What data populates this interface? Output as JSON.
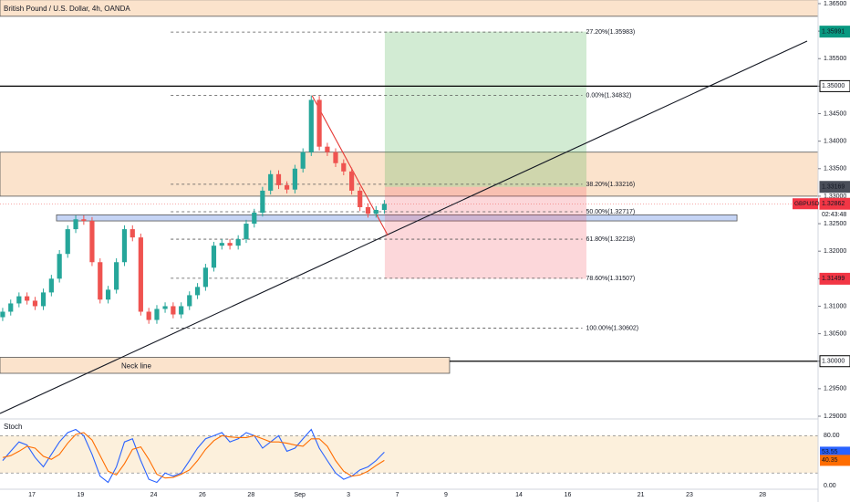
{
  "chart_data": [
    {
      "type": "candlestick",
      "title": "British Pound / U.S. Dollar, 4h, OANDA",
      "symbol": "GBPUSD",
      "countdown": "02:43:48",
      "last_price": 1.32862,
      "up_color": "#26a69a",
      "down_color": "#ef5350",
      "x": [
        -1.2,
        -0.87,
        -0.53,
        -0.2,
        0.13,
        0.47,
        0.8,
        1.13,
        1.47,
        1.8,
        2.13,
        2.47,
        2.8,
        3.13,
        3.47,
        3.8,
        4.13,
        4.47,
        4.8,
        5.13,
        5.47,
        5.8,
        6.13,
        6.47,
        6.8,
        7.13,
        7.47,
        7.8,
        8.13,
        8.47,
        8.8,
        9.13,
        9.47,
        9.8,
        10.13,
        10.47,
        10.8,
        11.13,
        11.47,
        11.8,
        12.13,
        12.47,
        12.8,
        13.13,
        13.47,
        13.8,
        14.13,
        14.47
      ],
      "open": [
        1.308,
        1.309,
        1.3105,
        1.3118,
        1.311,
        1.31,
        1.3125,
        1.315,
        1.3195,
        1.324,
        1.3258,
        1.3255,
        1.318,
        1.3112,
        1.313,
        1.318,
        1.324,
        1.3225,
        1.309,
        1.3075,
        1.3095,
        1.31,
        1.3085,
        1.31,
        1.312,
        1.3135,
        1.317,
        1.321,
        1.3215,
        1.321,
        1.3222,
        1.325,
        1.327,
        1.331,
        1.334,
        1.332,
        1.3312,
        1.335,
        1.338,
        1.3475,
        1.339,
        1.338,
        1.336,
        1.3345,
        1.331,
        1.328,
        1.3268,
        1.3275
      ],
      "high": [
        1.3097,
        1.3112,
        1.3125,
        1.3125,
        1.3117,
        1.3132,
        1.3157,
        1.3202,
        1.3247,
        1.3265,
        1.3265,
        1.3262,
        1.3187,
        1.3137,
        1.3187,
        1.3247,
        1.3247,
        1.3232,
        1.3097,
        1.3102,
        1.3107,
        1.3107,
        1.3107,
        1.3127,
        1.3142,
        1.3177,
        1.3217,
        1.3222,
        1.3222,
        1.3229,
        1.3257,
        1.3277,
        1.3317,
        1.3347,
        1.3347,
        1.3327,
        1.3357,
        1.3387,
        1.3483,
        1.3482,
        1.3397,
        1.3387,
        1.3367,
        1.3352,
        1.3317,
        1.3287,
        1.3282,
        1.3293
      ],
      "low": [
        1.3073,
        1.3083,
        1.3098,
        1.3103,
        1.3093,
        1.3093,
        1.3118,
        1.3143,
        1.3188,
        1.3233,
        1.3248,
        1.3173,
        1.3105,
        1.3105,
        1.3123,
        1.3173,
        1.3218,
        1.3083,
        1.3068,
        1.3068,
        1.3088,
        1.3078,
        1.3078,
        1.3093,
        1.3113,
        1.3128,
        1.3163,
        1.3203,
        1.3203,
        1.3203,
        1.3215,
        1.3243,
        1.3263,
        1.3303,
        1.3313,
        1.3305,
        1.3305,
        1.3343,
        1.3373,
        1.3383,
        1.3373,
        1.3353,
        1.3338,
        1.3303,
        1.3273,
        1.3261,
        1.3261,
        1.3268
      ],
      "close": [
        1.309,
        1.3105,
        1.3118,
        1.311,
        1.31,
        1.3125,
        1.315,
        1.3195,
        1.324,
        1.3258,
        1.3255,
        1.318,
        1.3112,
        1.313,
        1.318,
        1.324,
        1.3225,
        1.309,
        1.3075,
        1.3095,
        1.31,
        1.3085,
        1.31,
        1.312,
        1.3135,
        1.317,
        1.321,
        1.3215,
        1.321,
        1.3222,
        1.325,
        1.327,
        1.331,
        1.334,
        1.332,
        1.3312,
        1.335,
        1.338,
        1.3475,
        1.339,
        1.338,
        1.336,
        1.3345,
        1.331,
        1.328,
        1.3268,
        1.3275,
        1.3286
      ],
      "xlim": [
        -1.31,
        32.28
      ],
      "xticks": [
        {
          "value": 0,
          "label": "17"
        },
        {
          "value": 2,
          "label": "19"
        },
        {
          "value": 5,
          "label": "24"
        },
        {
          "value": 7,
          "label": "26"
        },
        {
          "value": 9,
          "label": "28"
        },
        {
          "value": 11,
          "label": "Sep"
        },
        {
          "value": 13,
          "label": "3"
        },
        {
          "value": 15,
          "label": "7"
        },
        {
          "value": 17,
          "label": "9"
        },
        {
          "value": 20,
          "label": "14"
        },
        {
          "value": 22,
          "label": "16"
        },
        {
          "value": 25,
          "label": "21"
        },
        {
          "value": 27,
          "label": "23"
        },
        {
          "value": 30,
          "label": "28"
        }
      ],
      "ylim": [
        1.28967,
        1.36566
      ],
      "yticks": [
        {
          "value": 1.365,
          "label": "1.36500"
        },
        {
          "value": 1.36,
          "label": "1.36000"
        },
        {
          "value": 1.355,
          "label": "1.35500"
        },
        {
          "value": 1.35,
          "label": "1.35000"
        },
        {
          "value": 1.345,
          "label": "1.34500"
        },
        {
          "value": 1.34,
          "label": "1.34000"
        },
        {
          "value": 1.335,
          "label": "1.33500"
        },
        {
          "value": 1.33,
          "label": "1.33000"
        },
        {
          "value": 1.325,
          "label": "1.32500"
        },
        {
          "value": 1.32,
          "label": "1.32000"
        },
        {
          "value": 1.315,
          "label": "1.31500"
        },
        {
          "value": 1.31,
          "label": "1.31000"
        },
        {
          "value": 1.305,
          "label": "1.30500"
        },
        {
          "value": 1.3,
          "label": "1.30000"
        },
        {
          "value": 1.295,
          "label": "1.29500"
        },
        {
          "value": 1.29,
          "label": "1.29000"
        }
      ],
      "zones": [
        {
          "from": 1.3627,
          "to": 1.3657,
          "color": "#fbe3cc"
        },
        {
          "from": 1.33,
          "to": 1.338,
          "color": "#fbe3cc"
        },
        {
          "from": 1.3255,
          "to": 1.3266,
          "start": 1.01,
          "end": 28.95,
          "color": "#c5d4f5"
        },
        {
          "from": 1.2978,
          "to": 1.3007,
          "start": -1.31,
          "end": 17.15,
          "color": "#fbe3cc",
          "label": "Neck line"
        }
      ],
      "levels": [
        {
          "price": {
            "value": 1.35,
            "label": "1.35000"
          }
        },
        {
          "price": {
            "value": 1.3,
            "label": "1.30000"
          },
          "start": 17.15
        }
      ],
      "fib": {
        "start": 5.7,
        "end": 22.6,
        "levels": [
          {
            "price": 1.35983,
            "label": "27.20%(1.35983)"
          },
          {
            "price": 1.34832,
            "label": "0.00%(1.34832)"
          },
          {
            "price": 1.33216,
            "label": "38.20%(1.33216)"
          },
          {
            "price": 1.32717,
            "label": "50.00%(1.32717)"
          },
          {
            "price": 1.32218,
            "label": "61.80%(1.32218)"
          },
          {
            "price": 1.31507,
            "label": "78.60%(1.31507)"
          },
          {
            "price": 1.30602,
            "label": "100.00%(1.30602)"
          }
        ]
      },
      "position": {
        "start": 14.49,
        "end": 22.77,
        "entry": 1.33169,
        "target": 1.35991,
        "stop": 1.31499
      },
      "trendlines": [
        {
          "x": [
            -1.31,
            31.83
          ],
          "y": [
            1.2905,
            1.3582
          ],
          "color": "#131722"
        },
        {
          "x": [
            11.5,
            14.61
          ],
          "y": [
            1.3483,
            1.3229
          ],
          "color": "#e53935"
        }
      ]
    },
    {
      "type": "line",
      "title": "Stoch",
      "x": [
        -1.2,
        -0.87,
        -0.53,
        -0.2,
        0.13,
        0.47,
        0.8,
        1.13,
        1.47,
        1.8,
        2.13,
        2.47,
        2.8,
        3.13,
        3.47,
        3.8,
        4.13,
        4.47,
        4.8,
        5.13,
        5.47,
        5.8,
        6.13,
        6.47,
        6.8,
        7.13,
        7.47,
        7.8,
        8.13,
        8.47,
        8.8,
        9.13,
        9.47,
        9.8,
        10.13,
        10.47,
        10.8,
        11.13,
        11.47,
        11.8,
        12.13,
        12.47,
        12.8,
        13.13,
        13.47,
        13.8,
        14.13,
        14.47
      ],
      "series": [
        {
          "color": "#2962ff",
          "values": [
            40,
            55,
            70,
            65,
            45,
            30,
            50,
            70,
            85,
            90,
            80,
            50,
            15,
            5,
            30,
            70,
            75,
            40,
            10,
            5,
            20,
            15,
            20,
            40,
            60,
            75,
            80,
            85,
            70,
            75,
            85,
            80,
            60,
            70,
            80,
            55,
            60,
            75,
            90,
            60,
            40,
            20,
            10,
            15,
            25,
            30,
            40,
            53.55
          ]
        },
        {
          "color": "#ff6d00",
          "values": [
            45,
            48,
            55,
            63,
            60,
            47,
            42,
            50,
            68,
            82,
            85,
            73,
            48,
            23,
            17,
            35,
            58,
            62,
            42,
            18,
            12,
            13,
            18,
            25,
            40,
            58,
            72,
            80,
            78,
            77,
            77,
            80,
            75,
            70,
            70,
            68,
            65,
            63,
            75,
            75,
            63,
            40,
            23,
            15,
            17,
            23,
            32,
            40.35
          ]
        }
      ],
      "band": [
        20,
        80
      ],
      "band_color": "#fcf0dc",
      "xlim": [
        -1.31,
        32.28
      ],
      "ylim": [
        -6,
        104
      ],
      "yticks": [
        {
          "value": 80,
          "label": "80.00"
        },
        {
          "value": 0,
          "label": "0.00"
        }
      ]
    }
  ]
}
